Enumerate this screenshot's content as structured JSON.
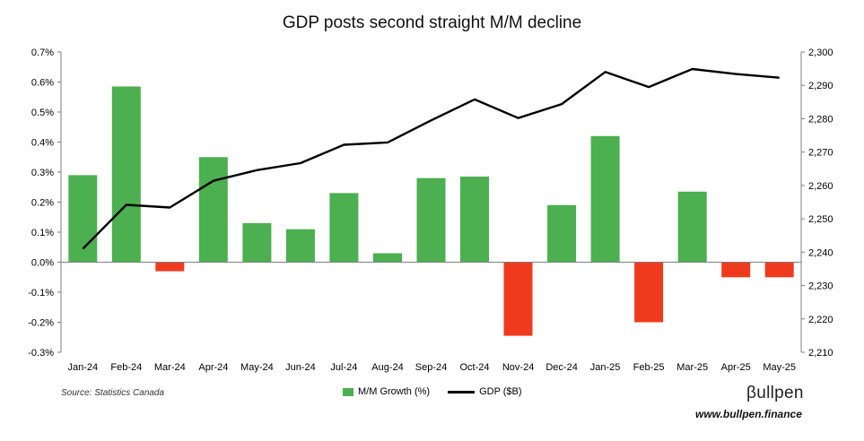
{
  "chart_data": {
    "type": "bar+line",
    "title": "GDP posts second straight M/M decline",
    "categories": [
      "Jan-24",
      "Feb-24",
      "Mar-24",
      "Apr-24",
      "May-24",
      "Jun-24",
      "Jul-24",
      "Aug-24",
      "Sep-24",
      "Oct-24",
      "Nov-24",
      "Dec-24",
      "Jan-25",
      "Feb-25",
      "Mar-25",
      "Apr-25",
      "May-25"
    ],
    "series": [
      {
        "name": "M/M Growth (%)",
        "type": "bar",
        "axis": "left",
        "values": [
          0.29,
          0.585,
          -0.03,
          0.35,
          0.13,
          0.11,
          0.23,
          0.03,
          0.28,
          0.285,
          -0.245,
          0.19,
          0.42,
          -0.2,
          0.235,
          -0.05,
          -0.05
        ]
      },
      {
        "name": "GDP ($B)",
        "type": "line",
        "axis": "right",
        "values": [
          2241,
          2254.2,
          2253.4,
          2261.4,
          2264.6,
          2266.7,
          2272.2,
          2272.9,
          2279.5,
          2285.8,
          2280.2,
          2284.4,
          2294,
          2289.5,
          2294.9,
          2293.4,
          2292.3
        ]
      }
    ],
    "left_axis": {
      "ylim": [
        -0.3,
        0.7
      ],
      "ticks": [
        "0.7%",
        "0.6%",
        "0.5%",
        "0.4%",
        "0.3%",
        "0.2%",
        "0.1%",
        "0.0%",
        "-0.1%",
        "-0.2%",
        "-0.3%"
      ]
    },
    "right_axis": {
      "ylim": [
        2210,
        2300
      ],
      "ticks": [
        "2,300",
        "2,290",
        "2,280",
        "2,270",
        "2,260",
        "2,250",
        "2,240",
        "2,230",
        "2,220",
        "2,210"
      ]
    },
    "colors": {
      "positive": "#4caf50",
      "negative": "#f03a1e",
      "line": "#000000"
    },
    "legend_position": "bottom-center"
  },
  "footer": {
    "source": "Source: Statistics Canada",
    "legend_bar_label": "M/M Growth (%)",
    "legend_line_label": "GDP ($B)",
    "brand": "βullpen",
    "url": "www.bullpen.finance"
  }
}
